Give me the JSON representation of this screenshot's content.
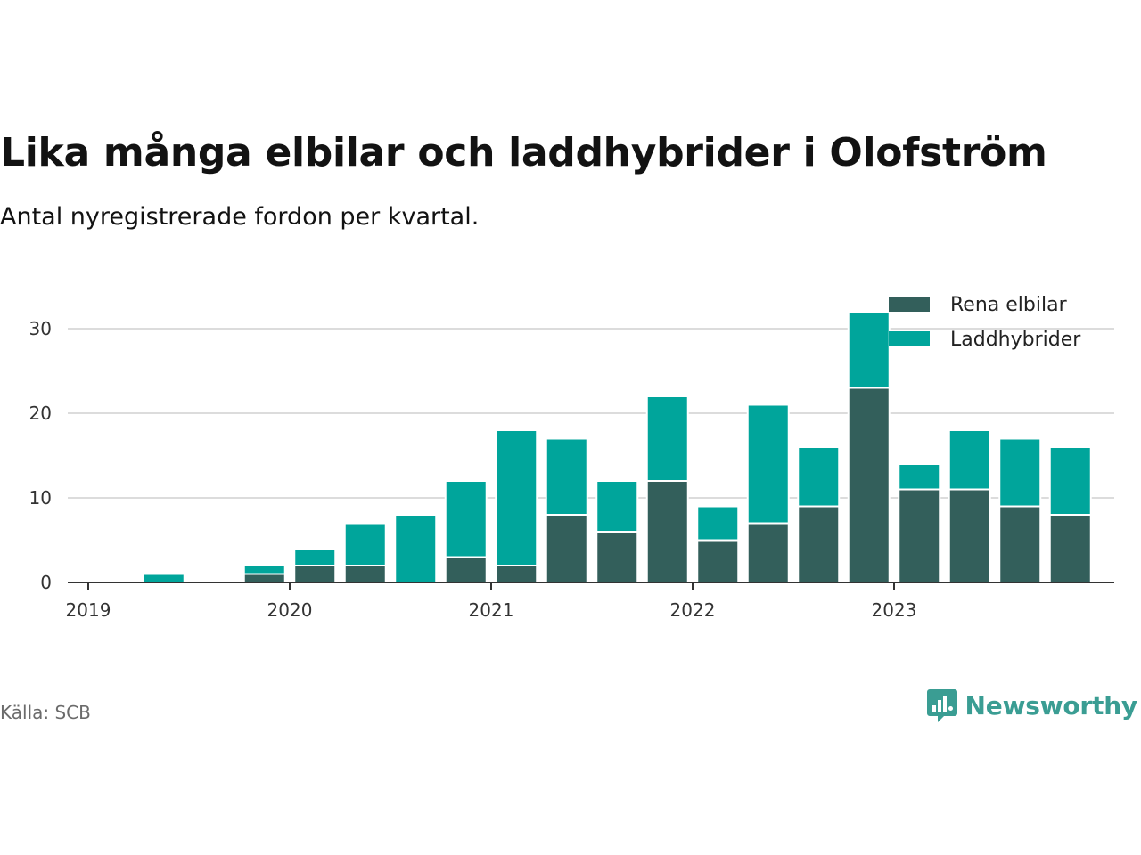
{
  "title": "Lika många elbilar och laddhybrider i Olofström",
  "subtitle": "Antal nyregistrerade fordon per kvartal.",
  "source": "Källa: SCB",
  "brand": {
    "name": "Newsworthy",
    "icon": "newsworthy-logo-icon"
  },
  "colors": {
    "elbilar": "#335f5b",
    "laddhybrider": "#00a59b",
    "grid": "#dcdcdc",
    "axis": "#333333"
  },
  "chart_data": {
    "type": "bar",
    "stacked": true,
    "categories": [
      "2019 Q1",
      "2019 Q2",
      "2019 Q3",
      "2019 Q4",
      "2020 Q1",
      "2020 Q2",
      "2020 Q3",
      "2020 Q4",
      "2021 Q1",
      "2021 Q2",
      "2021 Q3",
      "2021 Q4",
      "2022 Q1",
      "2022 Q2",
      "2022 Q3",
      "2022 Q4",
      "2023 Q1",
      "2023 Q2",
      "2023 Q3",
      "2023 Q4"
    ],
    "series": [
      {
        "name": "Rena elbilar",
        "values": [
          0,
          0,
          0,
          1,
          2,
          2,
          0,
          3,
          2,
          8,
          6,
          12,
          5,
          7,
          9,
          23,
          11,
          11,
          9,
          8
        ]
      },
      {
        "name": "Laddhybrider",
        "values": [
          0,
          1,
          0,
          1,
          2,
          5,
          8,
          9,
          16,
          9,
          6,
          10,
          4,
          14,
          7,
          9,
          3,
          7,
          8,
          8
        ]
      }
    ],
    "xticks": [
      "2019",
      "2020",
      "2021",
      "2022",
      "2023"
    ],
    "yticks": [
      "0",
      "10",
      "20",
      "30"
    ],
    "ylim": [
      0,
      35
    ],
    "xlabel": "",
    "ylabel": "",
    "legend": "top-right"
  }
}
